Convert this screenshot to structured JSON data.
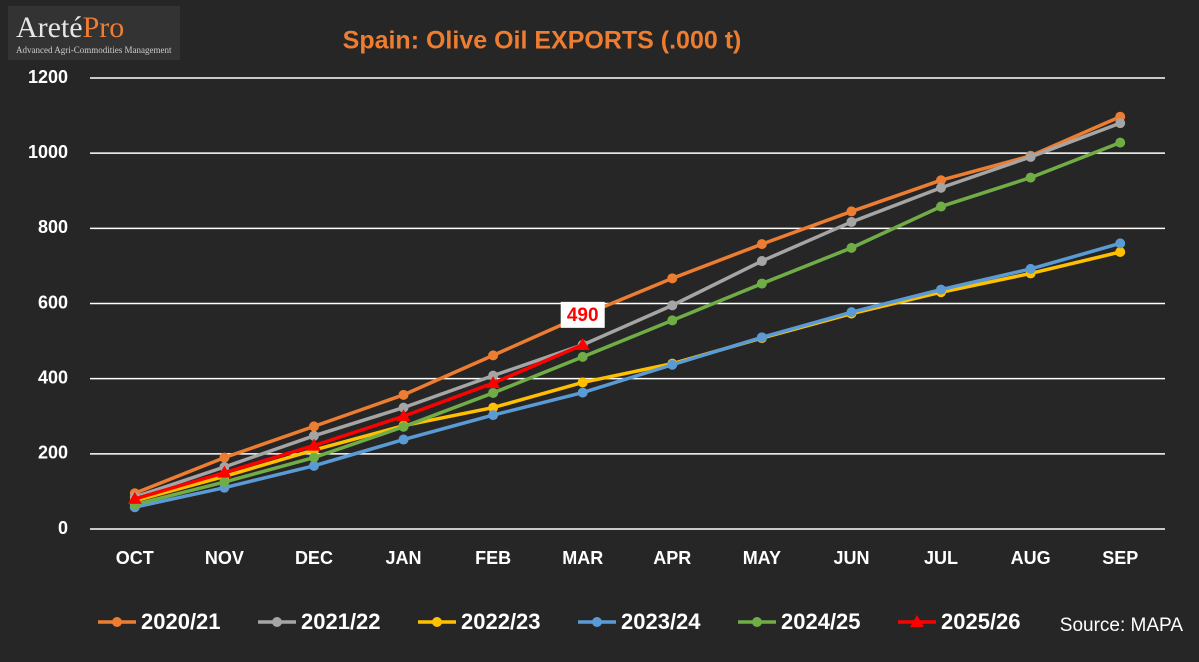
{
  "logo": {
    "name": "Areté",
    "accent": "Pro",
    "tagline": "Advanced Agri-Commodities Management"
  },
  "chart_data": {
    "type": "line",
    "title": "Spain: Olive Oil EXPORTS (.000 t)",
    "categories": [
      "OCT",
      "NOV",
      "DEC",
      "JAN",
      "FEB",
      "MAR",
      "APR",
      "MAY",
      "JUN",
      "JUL",
      "AUG",
      "SEP"
    ],
    "series": [
      {
        "name": "2020/21",
        "color": "#ed7d31",
        "marker": "circle",
        "values": [
          95,
          190,
          273,
          357,
          462,
          568,
          667,
          758,
          845,
          928,
          993,
          1097
        ]
      },
      {
        "name": "2021/22",
        "color": "#a5a5a5",
        "marker": "circle",
        "values": [
          85,
          165,
          248,
          323,
          408,
          490,
          595,
          713,
          817,
          908,
          990,
          1080
        ]
      },
      {
        "name": "2022/23",
        "color": "#ffc000",
        "marker": "circle",
        "values": [
          75,
          140,
          210,
          275,
          323,
          390,
          440,
          508,
          573,
          630,
          680,
          737
        ]
      },
      {
        "name": "2023/24",
        "color": "#5b9bd5",
        "marker": "circle",
        "values": [
          58,
          110,
          168,
          238,
          303,
          363,
          437,
          510,
          577,
          637,
          692,
          760
        ]
      },
      {
        "name": "2024/25",
        "color": "#70ad47",
        "marker": "circle",
        "values": [
          65,
          125,
          190,
          272,
          362,
          458,
          555,
          653,
          748,
          858,
          935,
          1028
        ]
      },
      {
        "name": "2025/26",
        "color": "#ff0000",
        "marker": "triangle",
        "values": [
          80,
          150,
          222,
          300,
          388,
          490,
          null,
          null,
          null,
          null,
          null,
          null
        ]
      }
    ],
    "labelled_point": {
      "series": 5,
      "index": 5
    },
    "ylim": [
      0,
      1200
    ],
    "yticks": [
      0,
      200,
      400,
      600,
      800,
      1000,
      1200
    ],
    "grid": true,
    "source": "Source: MAPA"
  }
}
